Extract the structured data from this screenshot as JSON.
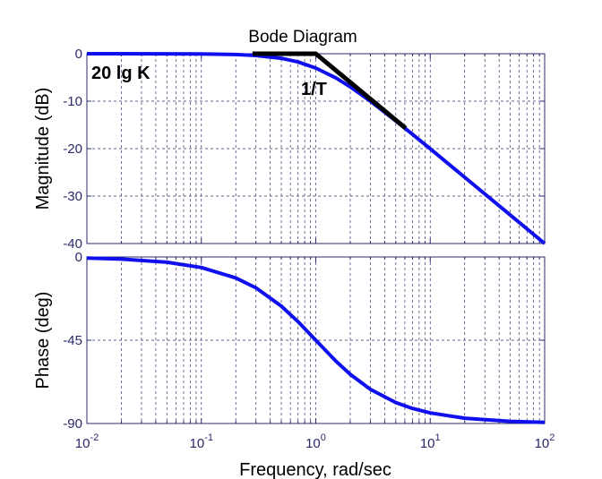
{
  "title": "Bode Diagram",
  "colors": {
    "response": "#1010ee",
    "asymptote": "#000000",
    "grid": "#33336a",
    "axis": "#2a2a6a"
  },
  "chart_data": [
    {
      "type": "line",
      "panel": "magnitude",
      "xscale": "log",
      "xlim": [
        0.01,
        100
      ],
      "ylim": [
        -40,
        0
      ],
      "ylabel": "Magnitude (dB)",
      "yticks": [
        "0",
        "-10",
        "-20",
        "-30",
        "-40"
      ],
      "ytick_values": [
        0,
        -10,
        -20,
        -30,
        -40
      ],
      "grid": true,
      "series": [
        {
          "role": "response",
          "x": [
            0.01,
            0.02,
            0.05,
            0.1,
            0.2,
            0.3,
            0.5,
            0.7,
            1,
            1.5,
            2,
            3,
            5,
            7,
            10,
            20,
            50,
            100
          ],
          "y": [
            0,
            0,
            -0.01,
            -0.04,
            -0.17,
            -0.37,
            -0.97,
            -1.73,
            -3.01,
            -5.12,
            -6.99,
            -10.0,
            -14.15,
            -17.0,
            -20.04,
            -26.03,
            -33.98,
            -40.0
          ]
        },
        {
          "role": "asymptote",
          "x": [
            0.28,
            1,
            6.1
          ],
          "y": [
            0,
            0,
            -15.7
          ]
        }
      ],
      "annotations": [
        {
          "text": "20 lg K"
        },
        {
          "text": "1/T"
        }
      ]
    },
    {
      "type": "line",
      "panel": "phase",
      "xscale": "log",
      "xlim": [
        0.01,
        100
      ],
      "ylim": [
        -90,
        0
      ],
      "xlabel": "Frequency, rad/sec",
      "ylabel": "Phase (deg)",
      "yticks": [
        "0",
        "-45",
        "-90"
      ],
      "ytick_values": [
        0,
        -45,
        -90
      ],
      "xticks": [
        {
          "base": "10",
          "exp": "-2",
          "value": 0.01
        },
        {
          "base": "10",
          "exp": "-1",
          "value": 0.1
        },
        {
          "base": "10",
          "exp": "0",
          "value": 1
        },
        {
          "base": "10",
          "exp": "1",
          "value": 10
        },
        {
          "base": "10",
          "exp": "2",
          "value": 100
        }
      ],
      "grid": true,
      "series": [
        {
          "role": "response",
          "x": [
            0.01,
            0.02,
            0.05,
            0.1,
            0.2,
            0.3,
            0.5,
            0.7,
            1,
            1.5,
            2,
            3,
            5,
            7,
            10,
            20,
            50,
            100
          ],
          "y": [
            -0.57,
            -1.15,
            -2.86,
            -5.71,
            -11.31,
            -16.7,
            -26.57,
            -34.99,
            -45,
            -56.31,
            -63.43,
            -71.57,
            -78.69,
            -81.87,
            -84.29,
            -87.14,
            -88.85,
            -89.43
          ]
        }
      ]
    }
  ]
}
